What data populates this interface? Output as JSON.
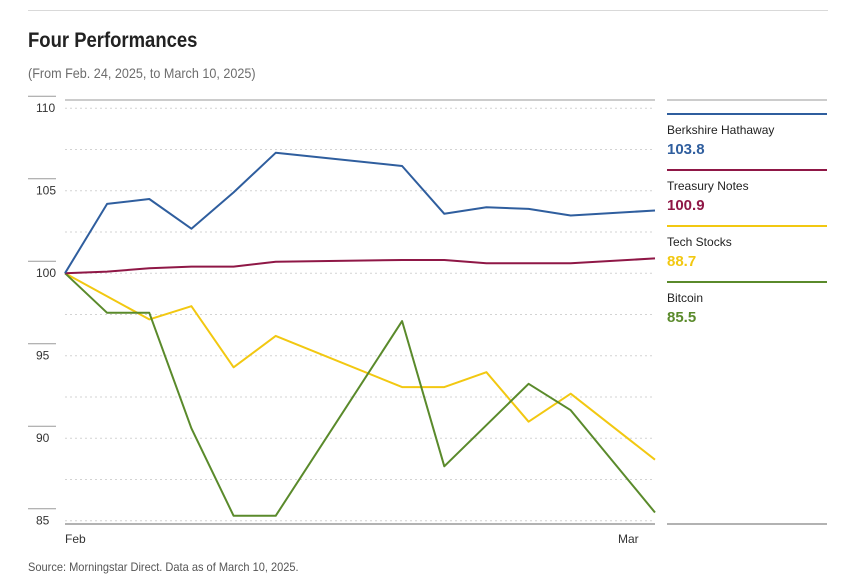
{
  "colors": {
    "berkshire": "#2f5e9e",
    "treasury": "#8f1746",
    "tech": "#f2c811",
    "bitcoin": "#5a8a2b",
    "grid": "#d3d3d3",
    "axis": "#666666"
  },
  "chart_data": {
    "type": "line",
    "title": "Four Performances",
    "subtitle": "(From Feb. 24, 2025, to March 10, 2025)",
    "source": "Source: Morningstar Direct. Data as of March 10, 2025.",
    "xlabel": "",
    "ylabel": "",
    "ylim": [
      84.8,
      110.5
    ],
    "yticks": [
      85,
      90,
      95,
      100,
      105,
      110
    ],
    "x_tick_labels": [
      {
        "index": 0,
        "label": "Feb"
      },
      {
        "index": 14,
        "label": "Mar"
      }
    ],
    "x_count": 15,
    "series": [
      {
        "key": "berkshire",
        "name": "Berkshire Hathaway",
        "final_label": "103.8",
        "values": [
          100,
          104.2,
          104.5,
          102.7,
          104.9,
          107.3,
          null,
          null,
          106.5,
          103.6,
          104.0,
          103.9,
          103.5,
          null,
          103.8
        ]
      },
      {
        "key": "treasury",
        "name": "Treasury Notes",
        "final_label": "100.9",
        "values": [
          100,
          100.1,
          100.3,
          100.4,
          100.4,
          100.7,
          null,
          null,
          100.8,
          100.8,
          100.6,
          100.6,
          100.6,
          null,
          100.9
        ]
      },
      {
        "key": "tech",
        "name": "Tech Stocks",
        "final_label": "88.7",
        "values": [
          100,
          null,
          97.2,
          98.0,
          94.3,
          96.2,
          null,
          null,
          93.1,
          93.1,
          94.0,
          91.0,
          92.7,
          null,
          88.7
        ]
      },
      {
        "key": "bitcoin",
        "name": "Bitcoin",
        "final_label": "85.5",
        "values": [
          100,
          97.6,
          97.6,
          90.6,
          85.3,
          85.3,
          null,
          null,
          97.1,
          88.3,
          null,
          93.3,
          91.7,
          null,
          85.5
        ]
      }
    ]
  }
}
